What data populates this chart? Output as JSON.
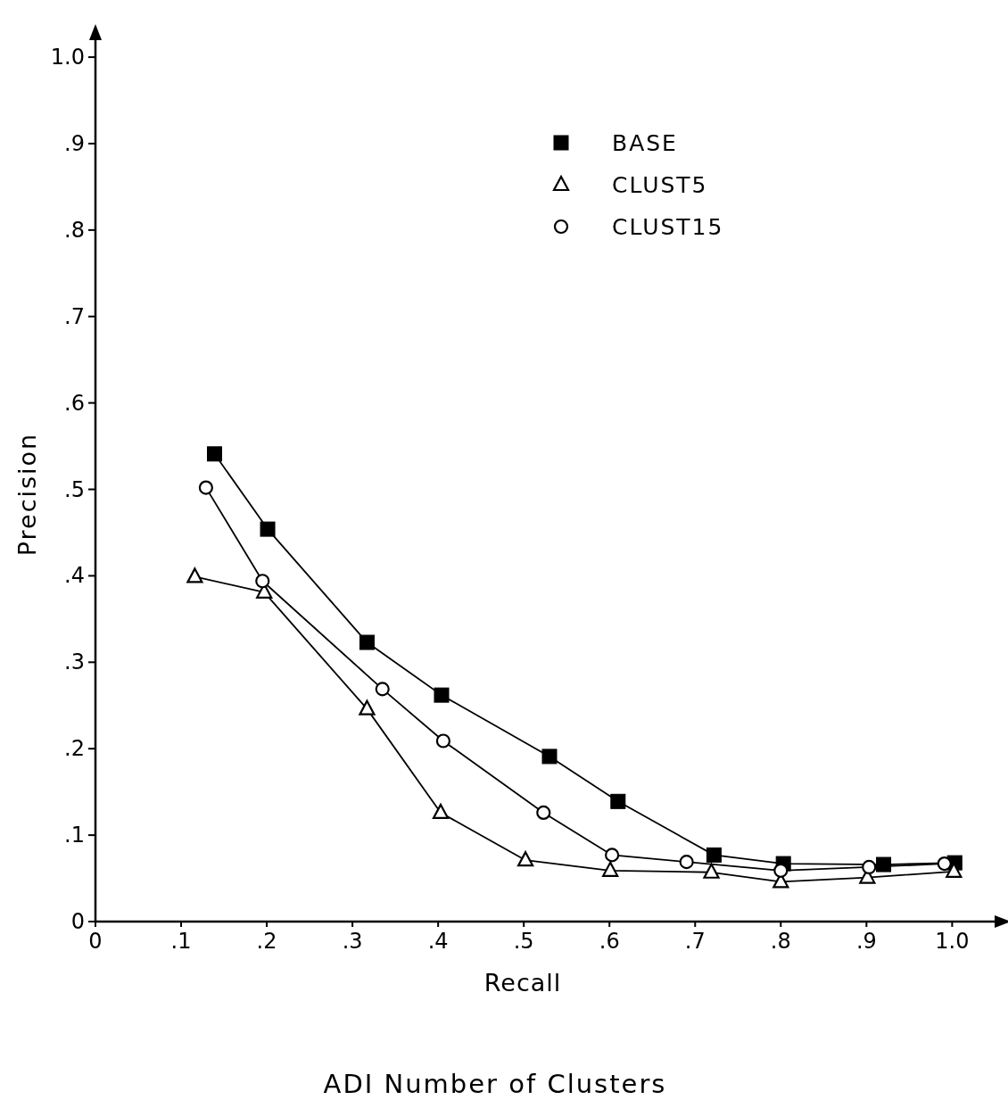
{
  "chart_data": {
    "type": "line",
    "title": "ADI Number of Clusters",
    "xlabel": "Recall",
    "ylabel": "Precision",
    "xlim": [
      0,
      1.06
    ],
    "ylim": [
      0,
      1.03
    ],
    "xticks": [
      0,
      {
        "value": 0.1,
        "label": ".1"
      },
      {
        "value": 0.2,
        "label": ".2"
      },
      {
        "value": 0.3,
        "label": ".3"
      },
      {
        "value": 0.4,
        "label": ".4"
      },
      {
        "value": 0.5,
        "label": ".5"
      },
      {
        "value": 0.6,
        "label": ".6"
      },
      {
        "value": 0.7,
        "label": ".7"
      },
      {
        "value": 0.8,
        "label": ".8"
      },
      {
        "value": 0.9,
        "label": ".9"
      },
      {
        "value": 1.0,
        "label": "1.0"
      }
    ],
    "yticks": [
      0,
      {
        "value": 0.1,
        "label": ".1"
      },
      {
        "value": 0.2,
        "label": ".2"
      },
      {
        "value": 0.3,
        "label": ".3"
      },
      {
        "value": 0.4,
        "label": ".4"
      },
      {
        "value": 0.5,
        "label": ".5"
      },
      {
        "value": 0.6,
        "label": ".6"
      },
      {
        "value": 0.7,
        "label": ".7"
      },
      {
        "value": 0.8,
        "label": ".8"
      },
      {
        "value": 0.9,
        "label": ".9"
      },
      {
        "value": 1.0,
        "label": "1.0"
      }
    ],
    "grid": false,
    "legend": "top right",
    "line_style": "solid",
    "series": [
      {
        "name": "BASE",
        "color": "#000000",
        "marker": "square",
        "x": [
          0.139,
          0.201,
          0.317,
          0.404,
          0.53,
          0.61,
          0.722,
          0.803,
          0.92,
          1.003
        ],
        "values": [
          0.541,
          0.454,
          0.323,
          0.262,
          0.191,
          0.139,
          0.077,
          0.067,
          0.066,
          0.068
        ]
      },
      {
        "name": "CLUST5",
        "color": "#000000",
        "marker": "triangle",
        "x": [
          0.116,
          0.197,
          0.317,
          0.403,
          0.502,
          0.601,
          0.719,
          0.8,
          0.901,
          1.002
        ],
        "values": [
          0.399,
          0.381,
          0.246,
          0.126,
          0.071,
          0.059,
          0.057,
          0.046,
          0.051,
          0.058
        ]
      },
      {
        "name": "CLUST15",
        "color": "#000000",
        "marker": "circle",
        "x": [
          0.129,
          0.195,
          0.335,
          0.406,
          0.523,
          0.603,
          0.69,
          0.8,
          0.903,
          0.991
        ],
        "values": [
          0.502,
          0.394,
          0.269,
          0.209,
          0.126,
          0.077,
          0.069,
          0.059,
          0.063,
          0.067
        ]
      }
    ]
  }
}
